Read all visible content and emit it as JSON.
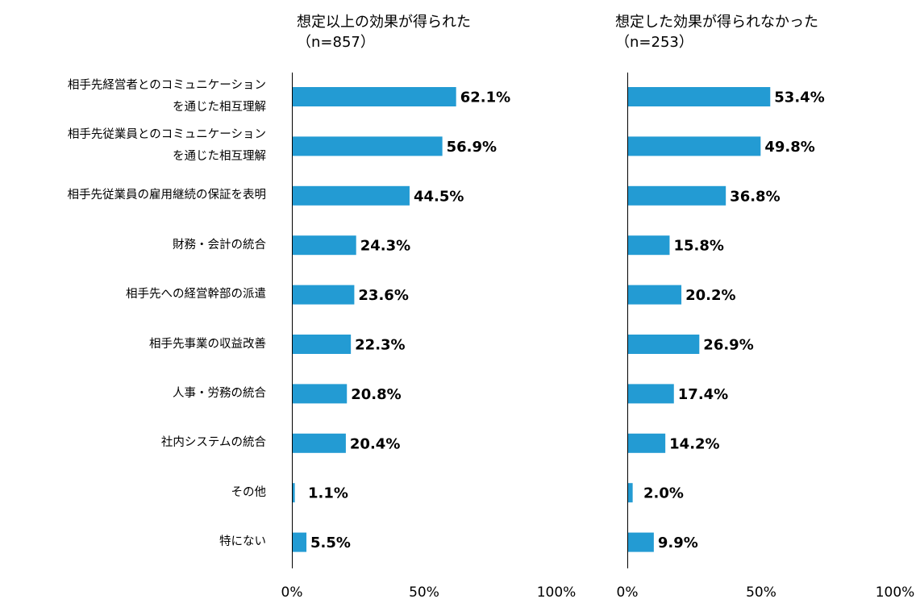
{
  "chart_data": [
    {
      "type": "bar",
      "orientation": "horizontal",
      "title": "想定以上の効果が得られた",
      "subtitle": "（n=857）",
      "categories": [
        [
          "相手先経営者とのコミュニケーション",
          "を通じた相互理解"
        ],
        [
          "相手先従業員とのコミュニケーション",
          "を通じた相互理解"
        ],
        [
          "相手先従業員の雇用継続の保証を表明"
        ],
        [
          "財務・会計の統合"
        ],
        [
          "相手先への経営幹部の派遣"
        ],
        [
          "相手先事業の収益改善"
        ],
        [
          "人事・労務の統合"
        ],
        [
          "社内システムの統合"
        ],
        [
          "その他"
        ],
        [
          "特にない"
        ]
      ],
      "values": [
        62.1,
        56.9,
        44.5,
        24.3,
        23.6,
        22.3,
        20.8,
        20.4,
        1.1,
        5.5
      ],
      "value_labels": [
        "62.1%",
        "56.9%",
        "44.5%",
        "24.3%",
        "23.6%",
        "22.3%",
        "20.8%",
        "20.4%",
        "1.1%",
        "5.5%"
      ],
      "xlim": [
        0,
        100
      ],
      "xticks": [
        "0%",
        "50%",
        "100%"
      ],
      "grid": false,
      "color": "#239bd3"
    },
    {
      "type": "bar",
      "orientation": "horizontal",
      "title": "想定した効果が得られなかった",
      "subtitle": "（n=253）",
      "values": [
        53.4,
        49.8,
        36.8,
        15.8,
        20.2,
        26.9,
        17.4,
        14.2,
        2.0,
        9.9
      ],
      "value_labels": [
        "53.4%",
        "49.8%",
        "36.8%",
        "15.8%",
        "20.2%",
        "26.9%",
        "17.4%",
        "14.2%",
        "2.0%",
        "9.9%"
      ],
      "xlim": [
        0,
        100
      ],
      "xticks": [
        "0%",
        "50%",
        "100%"
      ],
      "grid": false,
      "color": "#239bd3"
    }
  ]
}
